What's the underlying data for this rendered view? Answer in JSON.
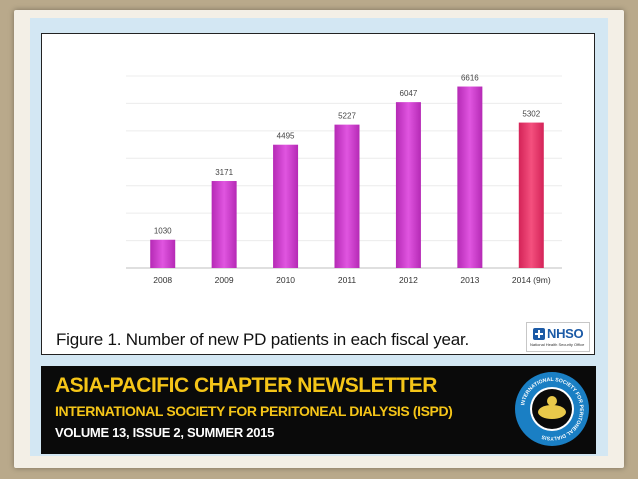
{
  "caption": "Figure 1. Number of new PD patients in each fiscal year.",
  "logo": {
    "name": "NHSO",
    "subtitle": "National Health Security Office",
    "color": "#1b5aa6",
    "icon": "plus-cross-icon"
  },
  "newsletter": {
    "title": "ASIA-PACIFIC CHAPTER NEWSLETTER",
    "subtitle": "INTERNATIONAL SOCIETY FOR PERITONEAL DIALYSIS (ISPD)",
    "issue": "VOLUME 13, ISSUE 2, SUMMER 2015",
    "seal_text": "INTERNATIONAL SOCIETY FOR PERITONEAL DIALYSIS"
  },
  "chart_data": {
    "type": "bar",
    "title": "",
    "xlabel": "",
    "ylabel": "",
    "categories": [
      "2008",
      "2009",
      "2010",
      "2011",
      "2012",
      "2013",
      "2014 (9m)"
    ],
    "values": [
      1030,
      3171,
      4495,
      5227,
      6047,
      6616,
      5302
    ],
    "ylim": [
      0,
      7000
    ],
    "grid": true,
    "legend": "none",
    "bar_colors": [
      "#cc33cc",
      "#cc33cc",
      "#cc33cc",
      "#cc33cc",
      "#cc33cc",
      "#cc33cc",
      "#e8336a"
    ]
  }
}
